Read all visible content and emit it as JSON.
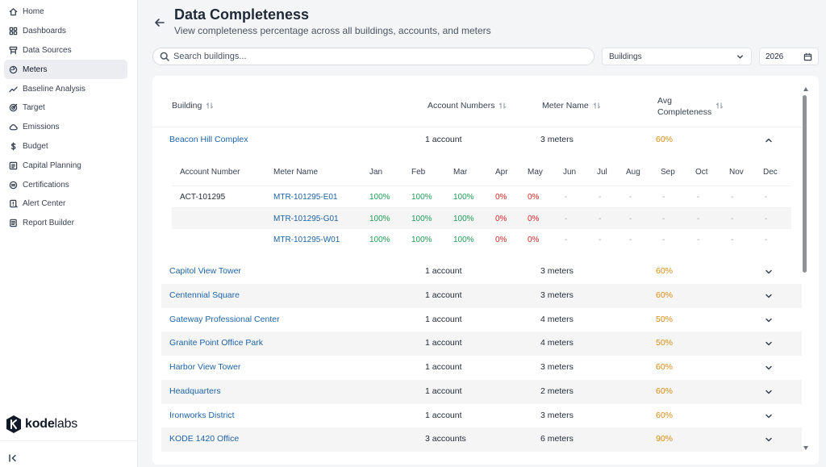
{
  "nav": [
    {
      "label": "Home",
      "icon": "home-icon"
    },
    {
      "label": "Dashboards",
      "icon": "dashboard-icon"
    },
    {
      "label": "Data Sources",
      "icon": "data-sources-icon"
    },
    {
      "label": "Meters",
      "icon": "meter-icon",
      "active": true
    },
    {
      "label": "Baseline Analysis",
      "icon": "trend-icon"
    },
    {
      "label": "Target",
      "icon": "target-icon"
    },
    {
      "label": "Emissions",
      "icon": "cloud-icon"
    },
    {
      "label": "Budget",
      "icon": "dollar-icon"
    },
    {
      "label": "Capital Planning",
      "icon": "planning-icon"
    },
    {
      "label": "Certifications",
      "icon": "certificate-icon"
    },
    {
      "label": "Alert Center",
      "icon": "alert-icon"
    },
    {
      "label": "Report Builder",
      "icon": "report-icon"
    }
  ],
  "logo": {
    "part1": "kode",
    "part2": "labs"
  },
  "header": {
    "title": "Data Completeness",
    "subtitle": "View completeness percentage across all buildings, accounts, and meters"
  },
  "search": {
    "placeholder": "Search buildings...",
    "value": ""
  },
  "filter": {
    "selected": "Buildings"
  },
  "year": {
    "value": "2026"
  },
  "table": {
    "headers": {
      "building": "Building",
      "accounts": "Account Numbers",
      "meter": "Meter Name",
      "avg_line1": "Avg",
      "avg_line2": "Completeness"
    },
    "expanded": {
      "headers": [
        "Account Number",
        "Meter Name",
        "Jan",
        "Feb",
        "Mar",
        "Apr",
        "May",
        "Jun",
        "Jul",
        "Aug",
        "Sep",
        "Oct",
        "Nov",
        "Dec"
      ],
      "rows": [
        {
          "account": "ACT-101295",
          "meter": "MTR-101295-E01",
          "months": [
            "100%",
            "100%",
            "100%",
            "0%",
            "0%",
            "-",
            "-",
            "-",
            "-",
            "-",
            "-",
            "-"
          ]
        },
        {
          "account": "",
          "meter": "MTR-101295-G01",
          "months": [
            "100%",
            "100%",
            "100%",
            "0%",
            "0%",
            "-",
            "-",
            "-",
            "-",
            "-",
            "-",
            "-"
          ]
        },
        {
          "account": "",
          "meter": "MTR-101295-W01",
          "months": [
            "100%",
            "100%",
            "100%",
            "0%",
            "0%",
            "-",
            "-",
            "-",
            "-",
            "-",
            "-",
            "-"
          ]
        }
      ]
    },
    "rows": [
      {
        "name": "Beacon Hill Complex",
        "accounts": "1 account",
        "meters": "3 meters",
        "avg": "60%",
        "expanded": true
      },
      {
        "name": "Capitol View Tower",
        "accounts": "1 account",
        "meters": "3 meters",
        "avg": "60%"
      },
      {
        "name": "Centennial Square",
        "accounts": "1 account",
        "meters": "3 meters",
        "avg": "60%"
      },
      {
        "name": "Gateway Professional Center",
        "accounts": "1 account",
        "meters": "4 meters",
        "avg": "50%"
      },
      {
        "name": "Granite Point Office Park",
        "accounts": "1 account",
        "meters": "4 meters",
        "avg": "50%"
      },
      {
        "name": "Harbor View Tower",
        "accounts": "1 account",
        "meters": "3 meters",
        "avg": "60%"
      },
      {
        "name": "Headquarters",
        "accounts": "1 account",
        "meters": "2 meters",
        "avg": "60%"
      },
      {
        "name": "Ironworks District",
        "accounts": "1 account",
        "meters": "3 meters",
        "avg": "60%"
      },
      {
        "name": "KODE 1420 Office",
        "accounts": "3 accounts",
        "meters": "6 meters",
        "avg": "90%"
      }
    ]
  },
  "colors": {
    "link": "#1d63a8",
    "complete": "#1f9d57",
    "missing": "#dc2626",
    "avg": "#d98b12"
  }
}
